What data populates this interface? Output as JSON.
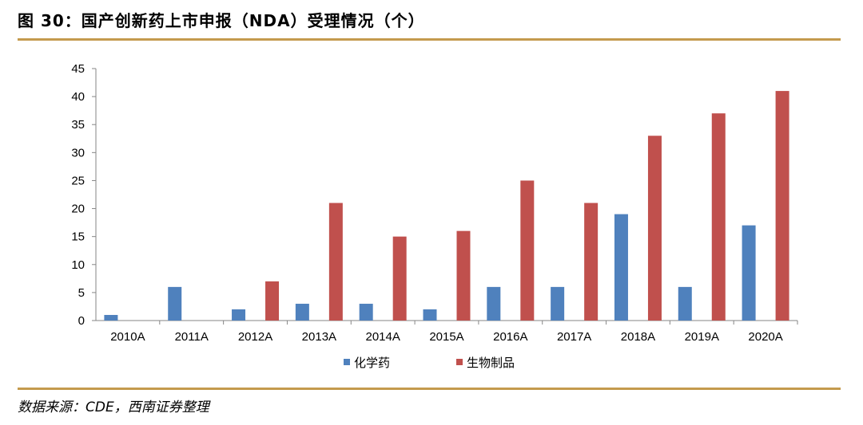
{
  "title": "图 30：国产创新药上市申报（NDA）受理情况（个）",
  "source": "数据来源：CDE，西南证券整理",
  "colors": {
    "rule": "#c49a4d",
    "series_chem": "#4f81bd",
    "series_bio": "#c0504d",
    "axis": "#868686"
  },
  "chart_data": {
    "type": "bar",
    "categories": [
      "2010A",
      "2011A",
      "2012A",
      "2013A",
      "2014A",
      "2015A",
      "2016A",
      "2017A",
      "2018A",
      "2019A",
      "2020A"
    ],
    "series": [
      {
        "name": "化学药",
        "values": [
          1,
          6,
          2,
          3,
          3,
          2,
          6,
          6,
          19,
          6,
          17
        ]
      },
      {
        "name": "生物制品",
        "values": [
          0,
          0,
          7,
          21,
          15,
          16,
          25,
          21,
          33,
          37,
          41
        ]
      }
    ],
    "ylim": [
      0,
      45
    ],
    "yticks": [
      0,
      5,
      10,
      15,
      20,
      25,
      30,
      35,
      40,
      45
    ],
    "grid": false,
    "legend": "bottom-center"
  }
}
